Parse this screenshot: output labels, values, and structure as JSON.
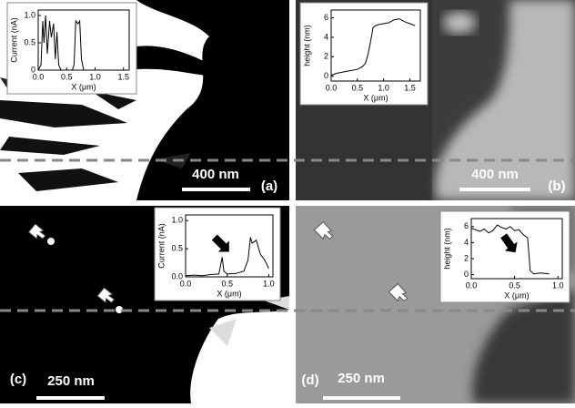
{
  "chart_data": [
    {
      "type": "line",
      "xlabel": "X (μm)",
      "ylabel": "Current (nA)",
      "xlim": [
        0,
        1.6
      ],
      "ylim": [
        0,
        1.1
      ],
      "xticks": [
        {
          "value": 0,
          "label": "0.0"
        },
        0.5,
        {
          "value": 1,
          "label": "1.0"
        },
        1.5
      ],
      "yticks": [
        0,
        0.5,
        {
          "value": 1,
          "label": "1.0"
        }
      ],
      "series": [
        {
          "color": "#000000",
          "x": [
            0,
            0.05,
            0.08,
            0.1,
            0.13,
            0.16,
            0.2,
            0.23,
            0.27,
            0.3,
            0.33,
            0.36,
            0.4,
            0.5,
            0.6,
            0.63,
            0.66,
            0.7,
            0.73,
            0.76,
            0.8,
            1.0
          ],
          "values": [
            0,
            0.1,
            0.9,
            0.5,
            1.0,
            0.3,
            0.9,
            0.6,
            0.85,
            0.2,
            0.7,
            0.1,
            0,
            0,
            0,
            0.1,
            0.9,
            0.85,
            0.9,
            0.2,
            0,
            0
          ]
        }
      ],
      "annotations": [
        "400 nm",
        "(a)"
      ]
    },
    {
      "type": "line",
      "xlabel": "X (μm)",
      "ylabel": "height (nm)",
      "xlim": [
        0,
        1.7
      ],
      "ylim": [
        -0.5,
        6.8
      ],
      "xticks": [
        {
          "value": 0,
          "label": "0.0"
        },
        0.5,
        {
          "value": 1,
          "label": "1.0"
        },
        1.5
      ],
      "yticks": [
        0,
        2,
        4,
        6
      ],
      "series": [
        {
          "color": "#000000",
          "x": [
            0,
            0.1,
            0.2,
            0.3,
            0.4,
            0.5,
            0.6,
            0.65,
            0.7,
            0.75,
            0.8,
            0.85,
            0.9,
            1.0,
            1.1,
            1.2,
            1.3,
            1.4,
            1.5,
            1.6
          ],
          "values": [
            0.1,
            0.3,
            0.4,
            0.5,
            0.6,
            0.7,
            1.0,
            1.3,
            2.2,
            3.5,
            5.0,
            5.2,
            5.3,
            5.4,
            5.5,
            5.8,
            5.9,
            5.6,
            5.4,
            5.2
          ]
        }
      ],
      "annotations": [
        "400 nm",
        "(b)"
      ]
    },
    {
      "type": "line",
      "xlabel": "X (μm)",
      "ylabel": "Current (nA)",
      "xlim": [
        0,
        1.05
      ],
      "ylim": [
        0,
        1.1
      ],
      "xticks": [
        {
          "value": 0,
          "label": "0.0"
        },
        0.5,
        {
          "value": 1,
          "label": "1.0"
        }
      ],
      "yticks": [
        {
          "value": 0,
          "label": "0.0"
        },
        0.5,
        {
          "value": 1,
          "label": "1.0"
        }
      ],
      "series": [
        {
          "color": "#000000",
          "x": [
            0,
            0.1,
            0.2,
            0.3,
            0.4,
            0.44,
            0.46,
            0.5,
            0.6,
            0.7,
            0.75,
            0.78,
            0.8,
            0.85,
            0.9,
            0.95,
            1.0
          ],
          "values": [
            0.02,
            0.03,
            0.02,
            0.04,
            0.05,
            0.35,
            0.1,
            0.05,
            0.06,
            0.1,
            0.3,
            0.7,
            0.6,
            0.65,
            0.4,
            0.3,
            0.15
          ]
        }
      ],
      "annotations": [
        "250 nm",
        "(c)"
      ]
    },
    {
      "type": "line",
      "xlabel": "X (μm)",
      "ylabel": "height (nm)",
      "xlim": [
        0,
        1.05
      ],
      "ylim": [
        -0.5,
        7
      ],
      "xticks": [
        {
          "value": 0,
          "label": "0.0"
        },
        0.5,
        {
          "value": 1,
          "label": "1.0"
        }
      ],
      "yticks": [
        0,
        2,
        4,
        6
      ],
      "series": [
        {
          "color": "#000000",
          "x": [
            0,
            0.05,
            0.1,
            0.15,
            0.2,
            0.25,
            0.3,
            0.35,
            0.4,
            0.45,
            0.5,
            0.55,
            0.6,
            0.65,
            0.68,
            0.72,
            0.8,
            0.9
          ],
          "values": [
            5.8,
            5.6,
            5.4,
            5.7,
            5.2,
            5.5,
            6.2,
            5.9,
            5.7,
            6.0,
            5.5,
            5.6,
            5.0,
            4.6,
            0.5,
            0.1,
            0.2,
            0.1
          ]
        }
      ],
      "annotations": [
        "250 nm",
        "(d)"
      ]
    }
  ]
}
